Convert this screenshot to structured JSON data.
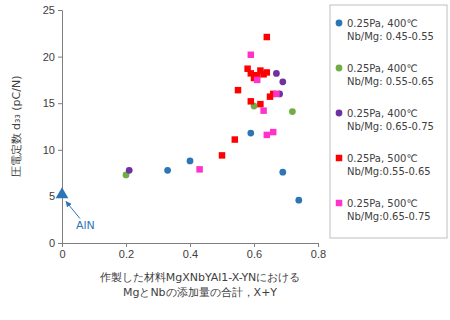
{
  "chart_data": {
    "type": "scatter",
    "x_label": "作製した材料MgXNbYAl1-X-YNにおける\nMgとNbの添加量の合計，X+Y",
    "y_label": "圧電定数 d₃₃ (pC/N)",
    "xlim": [
      0,
      0.8
    ],
    "xticks": [
      0,
      0.2,
      0.4,
      0.6,
      0.8
    ],
    "ylim": [
      0,
      25
    ],
    "yticks": [
      0,
      5,
      10,
      15,
      20,
      25
    ],
    "grid": false,
    "legend": "right",
    "series": [
      {
        "name": "0.25Pa, 400℃\nNb/Mg: 0.45-0.55",
        "color": "#2e75b6",
        "marker": "circle",
        "x": [
          0.33,
          0.4,
          0.59,
          0.69,
          0.74
        ],
        "y": [
          7.8,
          8.8,
          11.8,
          7.6,
          4.6
        ]
      },
      {
        "name": "0.25Pa, 400℃\nNb/Mg: 0.55-0.65",
        "color": "#70ad47",
        "marker": "circle",
        "x": [
          0.2,
          0.6,
          0.72
        ],
        "y": [
          7.3,
          14.7,
          14.1
        ]
      },
      {
        "name": "0.25Pa, 400℃\nNb/Mg: 0.65-0.75",
        "color": "#7030a0",
        "marker": "circle",
        "x": [
          0.21,
          0.67,
          0.69,
          0.68
        ],
        "y": [
          7.8,
          18.2,
          17.3,
          16.0
        ]
      },
      {
        "name": "0.25Pa, 500℃\nNb/Mg:0.55-0.65",
        "color": "#ff0000",
        "marker": "square",
        "x": [
          0.5,
          0.54,
          0.55,
          0.58,
          0.59,
          0.6,
          0.61,
          0.62,
          0.63,
          0.64,
          0.64,
          0.59,
          0.62,
          0.65,
          0.66
        ],
        "y": [
          9.4,
          11.1,
          16.4,
          18.7,
          18.2,
          17.7,
          18.0,
          18.5,
          18.1,
          22.1,
          18.3,
          15.2,
          14.9,
          15.7,
          16.0
        ]
      },
      {
        "name": "0.25Pa, 500℃\nNb/Mg:0.65-0.75",
        "color": "#ff33cc",
        "marker": "square",
        "x": [
          0.43,
          0.59,
          0.63,
          0.64,
          0.66,
          0.61,
          0.67
        ],
        "y": [
          7.9,
          20.2,
          14.2,
          11.6,
          11.9,
          17.5,
          16.0
        ]
      }
    ],
    "reference_point": {
      "label": "AlN",
      "x": 0,
      "y": 5.2,
      "color": "#2e75b6",
      "marker": "triangle"
    }
  }
}
